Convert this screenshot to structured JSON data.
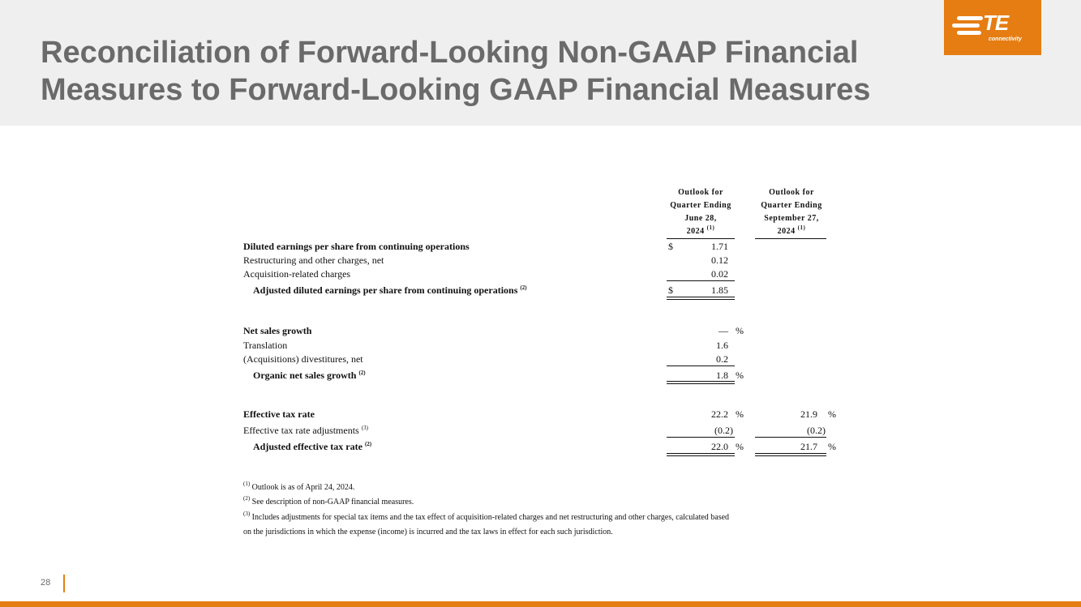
{
  "slide": {
    "title_line1": "Reconciliation of Forward-Looking Non-GAAP Financial",
    "title_line2": "Measures to Forward-Looking GAAP Financial Measures",
    "page_number": "28"
  },
  "logo": {
    "text": "TE",
    "subtext": "connectivity",
    "brand_color": "#e67d12"
  },
  "columns": [
    {
      "line1": "Outlook for",
      "line2": "Quarter Ending",
      "line3": "June 28,",
      "line4": "2024",
      "note": "(1)"
    },
    {
      "line1": "Outlook for",
      "line2": "Quarter Ending",
      "line3": "September 27,",
      "line4": "2024",
      "note": "(1)"
    }
  ],
  "eps": {
    "diluted": {
      "label": "Diluted earnings per share from continuing operations",
      "currency": "$",
      "q2": "1.71"
    },
    "restructuring": {
      "label": "Restructuring and other charges, net",
      "q2": "0.12"
    },
    "acquisition": {
      "label": "Acquisition-related charges",
      "q2": "0.02"
    },
    "adjusted": {
      "label": "Adjusted diluted earnings per share from continuing operations",
      "note": "(2)",
      "currency": "$",
      "q2": "1.85"
    }
  },
  "sales": {
    "net_growth": {
      "label": "Net sales growth",
      "q2": "—",
      "pct": "%"
    },
    "translation": {
      "label": "Translation",
      "q2": "1.6"
    },
    "acquisitions": {
      "label": "(Acquisitions) divestitures, net",
      "q2": "0.2"
    },
    "organic": {
      "label": "Organic net sales growth",
      "note": "(2)",
      "q2": "1.8",
      "pct": "%"
    }
  },
  "tax": {
    "effective": {
      "label": "Effective tax rate",
      "q2": "22.2",
      "q3": "21.9",
      "pct": "%"
    },
    "adjustments": {
      "label": "Effective tax rate adjustments",
      "note": "(3)",
      "q2": "(0.2)",
      "q3": "(0.2)"
    },
    "adjusted": {
      "label": "Adjusted effective tax rate",
      "note": "(2)",
      "q2": "22.0",
      "q3": "21.7",
      "pct": "%"
    }
  },
  "footnotes": {
    "fn1": {
      "mark": "(1)",
      "text": "Outlook is as of April 24, 2024."
    },
    "fn2": {
      "mark": "(2)",
      "text": "See description of non-GAAP financial measures."
    },
    "fn3": {
      "mark": "(3)",
      "text": "Includes adjustments for special tax items and the tax effect of acquisition-related charges and net restructuring and other charges, calculated based",
      "text_line2": "on the jurisdictions in which the expense (income) is incurred and the tax laws in effect for each such jurisdiction."
    }
  }
}
